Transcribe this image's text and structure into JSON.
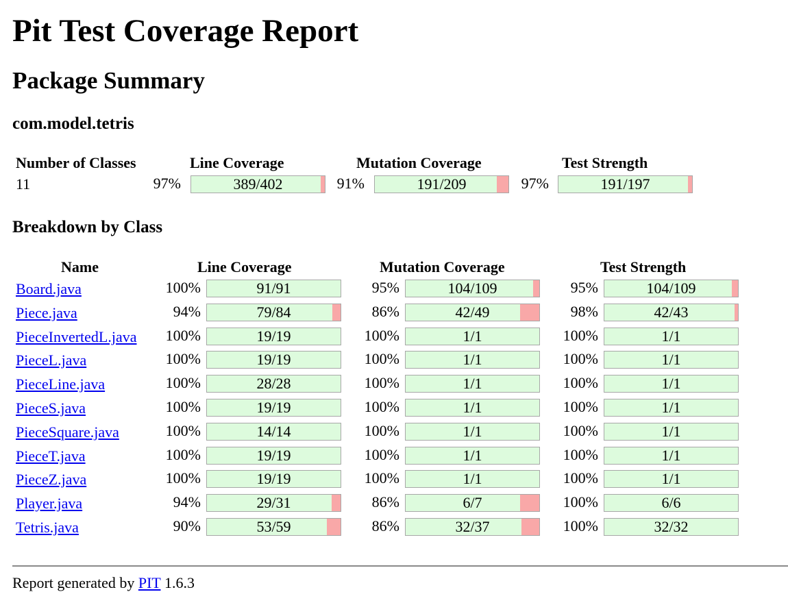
{
  "report": {
    "title": "Pit Test Coverage Report",
    "subtitle": "Package Summary",
    "package_name": "com.model.tetris",
    "summary_headers": {
      "classes": "Number of Classes",
      "line": "Line Coverage",
      "mutation": "Mutation Coverage",
      "strength": "Test Strength"
    },
    "summary": {
      "classes": "11",
      "line": {
        "pct": "97%",
        "label": "389/402",
        "ratio": 0.9677
      },
      "mutation": {
        "pct": "91%",
        "label": "191/209",
        "ratio": 0.9139
      },
      "strength": {
        "pct": "97%",
        "label": "191/197",
        "ratio": 0.9695
      }
    },
    "breakdown_title": "Breakdown by Class",
    "breakdown_headers": {
      "name": "Name",
      "line": "Line Coverage",
      "mutation": "Mutation Coverage",
      "strength": "Test Strength"
    },
    "classes": [
      {
        "name": "Board.java",
        "line": {
          "pct": "100%",
          "label": "91/91",
          "ratio": 1.0
        },
        "mutation": {
          "pct": "95%",
          "label": "104/109",
          "ratio": 0.9541
        },
        "strength": {
          "pct": "95%",
          "label": "104/109",
          "ratio": 0.9541
        }
      },
      {
        "name": "Piece.java",
        "line": {
          "pct": "94%",
          "label": "79/84",
          "ratio": 0.9405
        },
        "mutation": {
          "pct": "86%",
          "label": "42/49",
          "ratio": 0.8571
        },
        "strength": {
          "pct": "98%",
          "label": "42/43",
          "ratio": 0.9767
        }
      },
      {
        "name": "PieceInvertedL.java",
        "line": {
          "pct": "100%",
          "label": "19/19",
          "ratio": 1.0
        },
        "mutation": {
          "pct": "100%",
          "label": "1/1",
          "ratio": 1.0
        },
        "strength": {
          "pct": "100%",
          "label": "1/1",
          "ratio": 1.0
        }
      },
      {
        "name": "PieceL.java",
        "line": {
          "pct": "100%",
          "label": "19/19",
          "ratio": 1.0
        },
        "mutation": {
          "pct": "100%",
          "label": "1/1",
          "ratio": 1.0
        },
        "strength": {
          "pct": "100%",
          "label": "1/1",
          "ratio": 1.0
        }
      },
      {
        "name": "PieceLine.java",
        "line": {
          "pct": "100%",
          "label": "28/28",
          "ratio": 1.0
        },
        "mutation": {
          "pct": "100%",
          "label": "1/1",
          "ratio": 1.0
        },
        "strength": {
          "pct": "100%",
          "label": "1/1",
          "ratio": 1.0
        }
      },
      {
        "name": "PieceS.java",
        "line": {
          "pct": "100%",
          "label": "19/19",
          "ratio": 1.0
        },
        "mutation": {
          "pct": "100%",
          "label": "1/1",
          "ratio": 1.0
        },
        "strength": {
          "pct": "100%",
          "label": "1/1",
          "ratio": 1.0
        }
      },
      {
        "name": "PieceSquare.java",
        "line": {
          "pct": "100%",
          "label": "14/14",
          "ratio": 1.0
        },
        "mutation": {
          "pct": "100%",
          "label": "1/1",
          "ratio": 1.0
        },
        "strength": {
          "pct": "100%",
          "label": "1/1",
          "ratio": 1.0
        }
      },
      {
        "name": "PieceT.java",
        "line": {
          "pct": "100%",
          "label": "19/19",
          "ratio": 1.0
        },
        "mutation": {
          "pct": "100%",
          "label": "1/1",
          "ratio": 1.0
        },
        "strength": {
          "pct": "100%",
          "label": "1/1",
          "ratio": 1.0
        }
      },
      {
        "name": "PieceZ.java",
        "line": {
          "pct": "100%",
          "label": "19/19",
          "ratio": 1.0
        },
        "mutation": {
          "pct": "100%",
          "label": "1/1",
          "ratio": 1.0
        },
        "strength": {
          "pct": "100%",
          "label": "1/1",
          "ratio": 1.0
        }
      },
      {
        "name": "Player.java",
        "line": {
          "pct": "94%",
          "label": "29/31",
          "ratio": 0.9355
        },
        "mutation": {
          "pct": "86%",
          "label": "6/7",
          "ratio": 0.8571
        },
        "strength": {
          "pct": "100%",
          "label": "6/6",
          "ratio": 1.0
        }
      },
      {
        "name": "Tetris.java",
        "line": {
          "pct": "90%",
          "label": "53/59",
          "ratio": 0.8983
        },
        "mutation": {
          "pct": "86%",
          "label": "32/37",
          "ratio": 0.8649
        },
        "strength": {
          "pct": "100%",
          "label": "32/32",
          "ratio": 1.0
        }
      }
    ],
    "footer": {
      "prefix": "Report generated by",
      "link": "PIT",
      "version": "1.6.3"
    },
    "colors": {
      "covered": "#ddfbdd",
      "missed": "#f9a8a8",
      "link": "#0000ee"
    }
  }
}
